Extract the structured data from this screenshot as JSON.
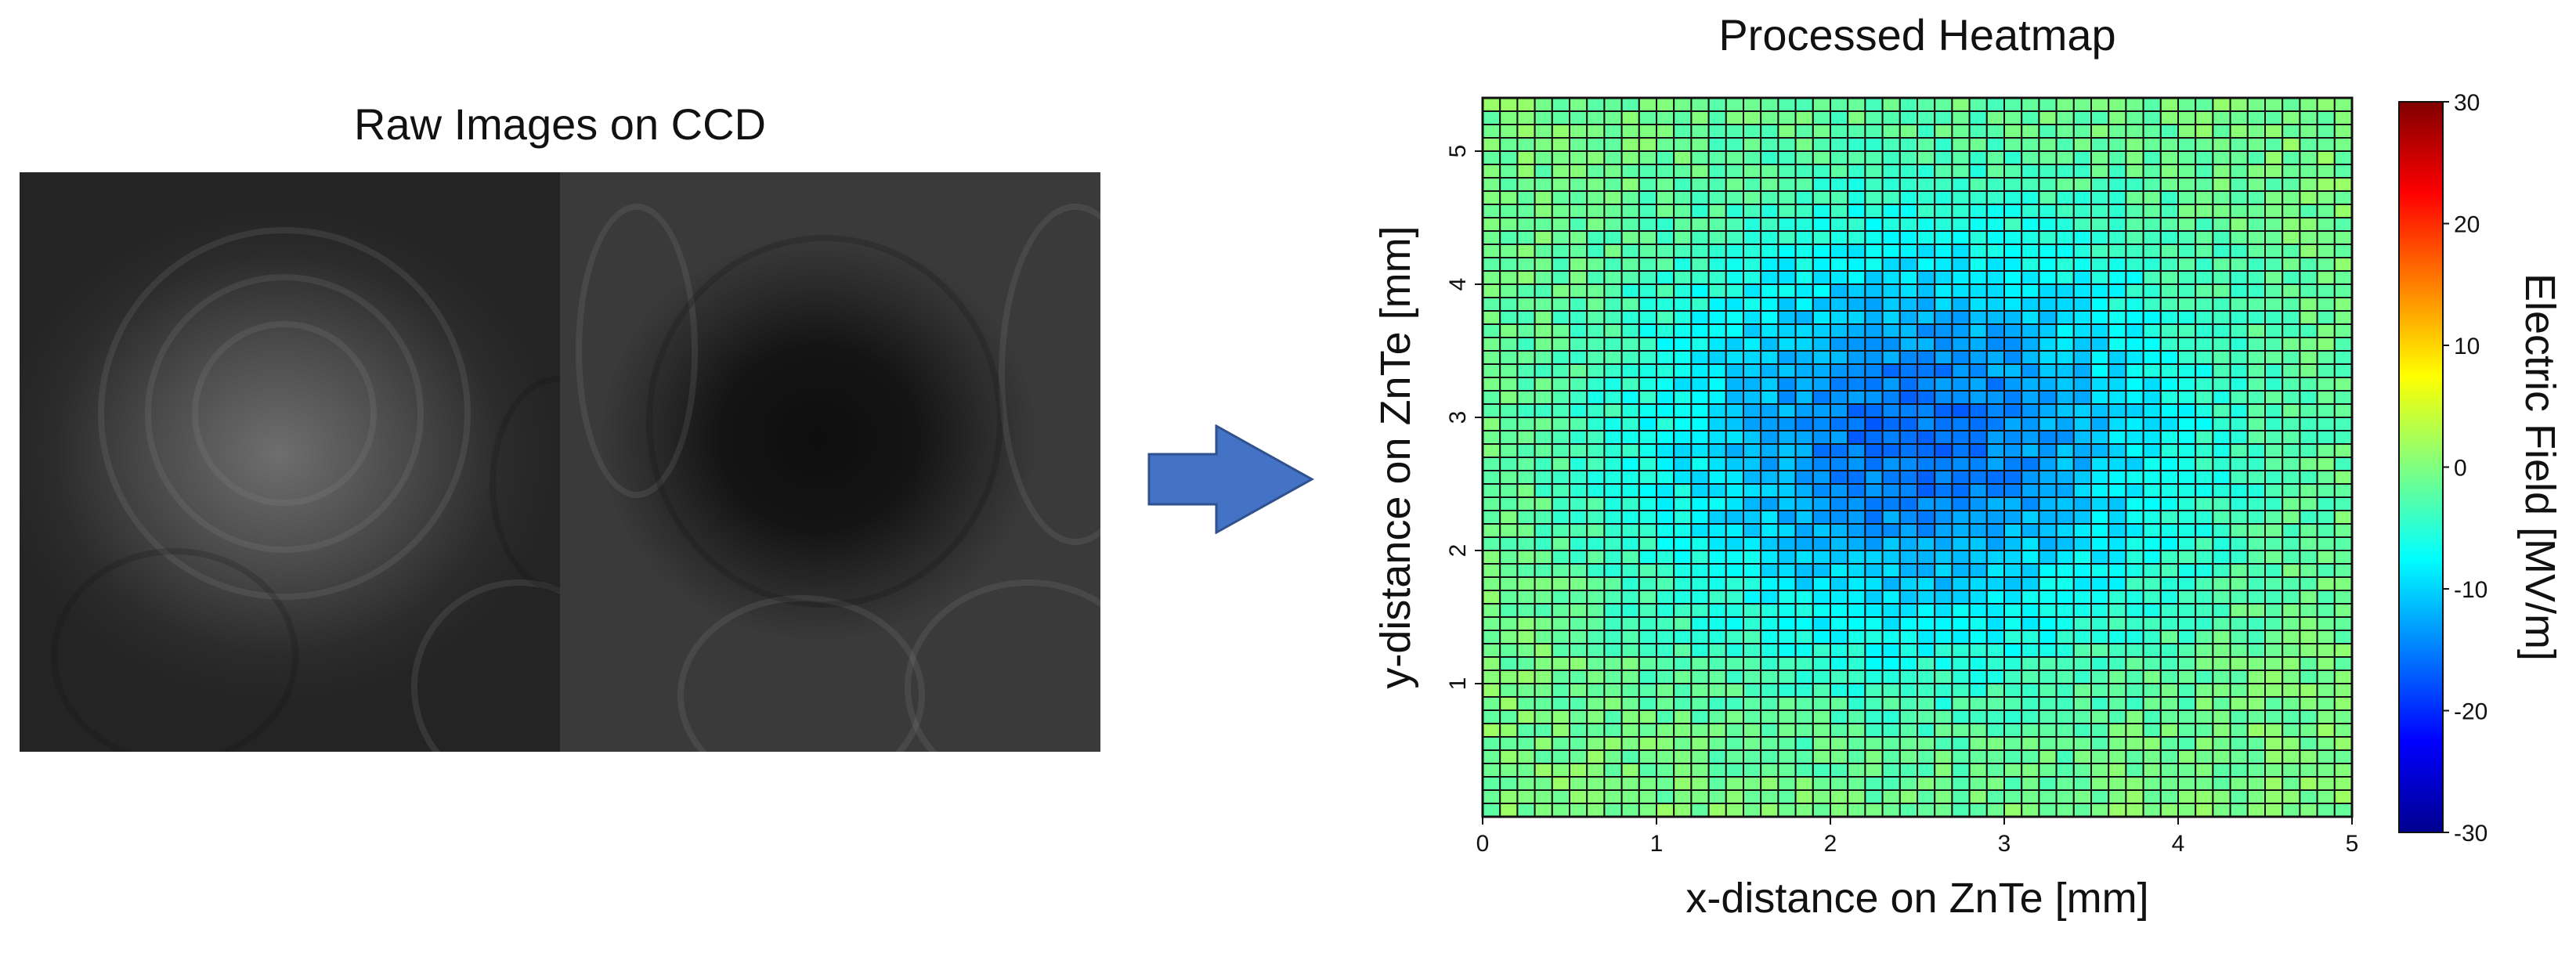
{
  "raw_panel": {
    "title": "Raw Images on CCD"
  },
  "arrow": {
    "color": "#4472c4",
    "stroke": "#2f528f"
  },
  "chart_data": {
    "type": "heatmap",
    "title": "Processed Heatmap",
    "xlabel": "x-distance on ZnTe [mm]",
    "ylabel": "y-distance on ZnTe [mm]",
    "xlim": [
      0,
      5
    ],
    "ylim": [
      0,
      5.4
    ],
    "x_ticks": [
      "0",
      "1",
      "2",
      "3",
      "4",
      "5"
    ],
    "y_ticks": [
      "1",
      "2",
      "3",
      "4",
      "5"
    ],
    "x_tick_values": [
      0,
      1,
      2,
      3,
      4,
      5
    ],
    "y_tick_values": [
      1,
      2,
      3,
      4,
      5
    ],
    "grid": {
      "cols": 50,
      "rows": 54,
      "cell_size_mm": 0.1
    },
    "field_model": {
      "description_units": "MV/m",
      "center_mm": [
        2.5,
        2.85
      ],
      "edge_value": 0,
      "center_value": -16,
      "radius_x_mm": 2.9,
      "radius_y_mm": 3.0
    },
    "colorbar": {
      "label": "Electric Field [MV/m]",
      "min": -30,
      "max": 30,
      "ticks": [
        "30",
        "20",
        "10",
        "0",
        "-10",
        "-20",
        "-30"
      ],
      "tick_values": [
        30,
        20,
        10,
        0,
        -10,
        -20,
        -30
      ]
    }
  }
}
